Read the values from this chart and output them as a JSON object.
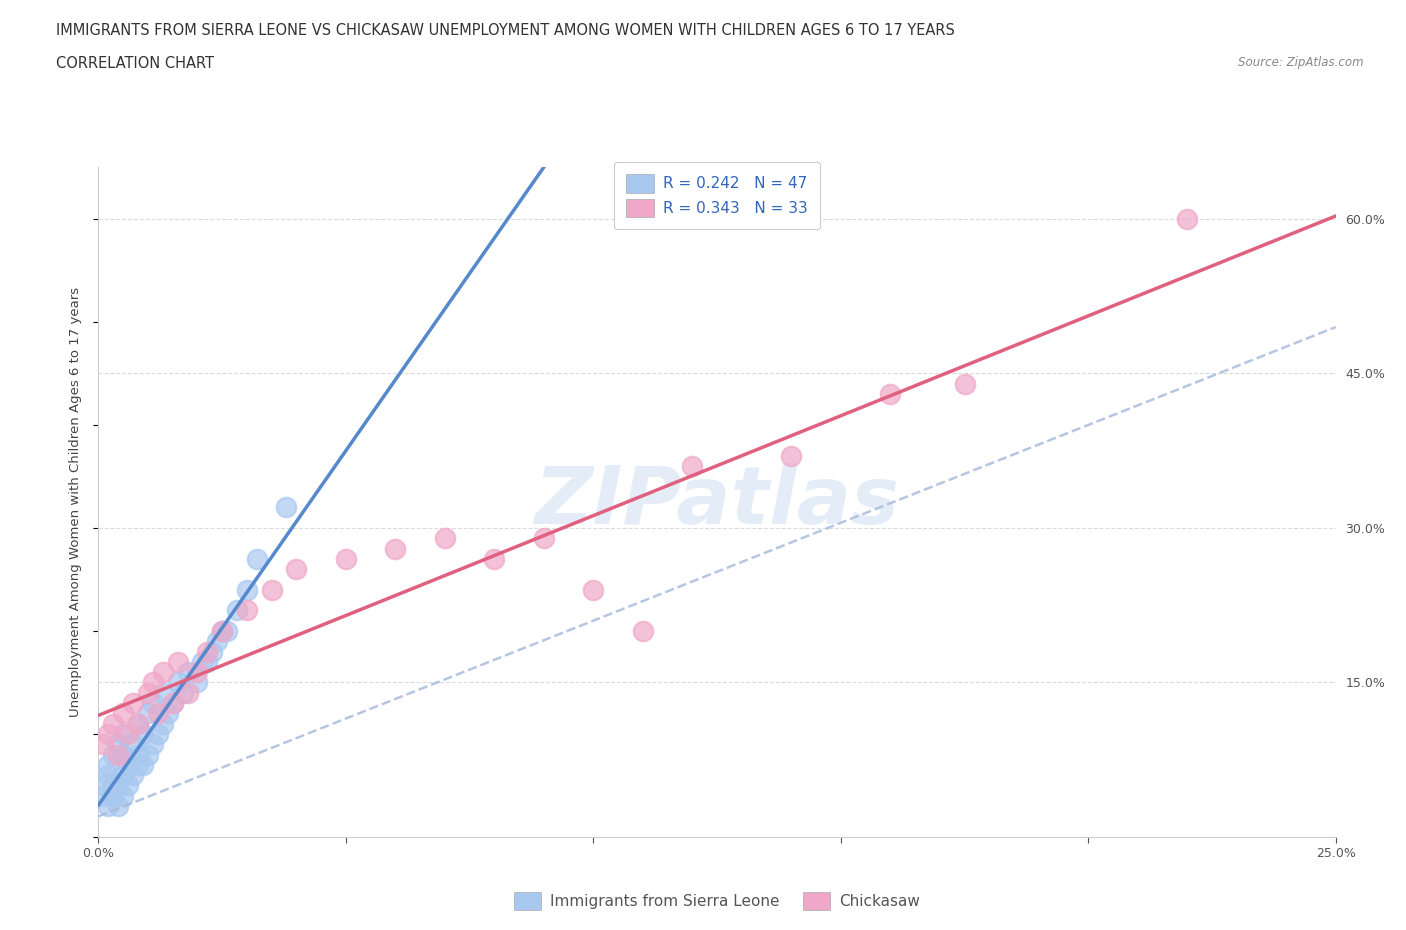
{
  "title": "IMMIGRANTS FROM SIERRA LEONE VS CHICKASAW UNEMPLOYMENT AMONG WOMEN WITH CHILDREN AGES 6 TO 17 YEARS",
  "subtitle": "CORRELATION CHART",
  "source": "Source: ZipAtlas.com",
  "ylabel": "Unemployment Among Women with Children Ages 6 to 17 years",
  "watermark": "ZIPatlas",
  "legend_label_1": "Immigrants from Sierra Leone",
  "legend_label_2": "Chickasaw",
  "r1": 0.242,
  "n1": 47,
  "r2": 0.343,
  "n2": 33,
  "color1": "#a8c8f0",
  "color2": "#f0a8c8",
  "line1_color": "#5588cc",
  "line1_dash_color": "#aabbdd",
  "line2_color": "#e06080",
  "xlim": [
    0.0,
    0.25
  ],
  "ylim": [
    0.0,
    0.65
  ],
  "xticks": [
    0.0,
    0.05,
    0.1,
    0.15,
    0.2,
    0.25
  ],
  "ytick_right_values": [
    0.0,
    0.15,
    0.3,
    0.45,
    0.6
  ],
  "ytick_right_labels": [
    "",
    "15.0%",
    "30.0%",
    "45.0%",
    "60.0%"
  ],
  "scatter1_x": [
    0.001,
    0.001,
    0.002,
    0.002,
    0.002,
    0.003,
    0.003,
    0.003,
    0.004,
    0.004,
    0.004,
    0.005,
    0.005,
    0.005,
    0.005,
    0.006,
    0.006,
    0.007,
    0.007,
    0.008,
    0.008,
    0.008,
    0.009,
    0.009,
    0.01,
    0.01,
    0.011,
    0.011,
    0.012,
    0.013,
    0.013,
    0.014,
    0.015,
    0.016,
    0.017,
    0.018,
    0.02,
    0.021,
    0.022,
    0.023,
    0.024,
    0.025,
    0.026,
    0.028,
    0.03,
    0.032,
    0.038
  ],
  "scatter1_y": [
    0.04,
    0.05,
    0.03,
    0.06,
    0.07,
    0.04,
    0.05,
    0.08,
    0.03,
    0.05,
    0.09,
    0.04,
    0.06,
    0.08,
    0.1,
    0.05,
    0.07,
    0.06,
    0.09,
    0.07,
    0.08,
    0.11,
    0.07,
    0.1,
    0.08,
    0.12,
    0.09,
    0.13,
    0.1,
    0.11,
    0.14,
    0.12,
    0.13,
    0.15,
    0.14,
    0.16,
    0.15,
    0.17,
    0.17,
    0.18,
    0.19,
    0.2,
    0.2,
    0.22,
    0.24,
    0.27,
    0.32
  ],
  "scatter2_x": [
    0.001,
    0.002,
    0.003,
    0.004,
    0.005,
    0.006,
    0.007,
    0.008,
    0.01,
    0.011,
    0.012,
    0.013,
    0.015,
    0.016,
    0.018,
    0.02,
    0.022,
    0.025,
    0.03,
    0.035,
    0.04,
    0.05,
    0.06,
    0.07,
    0.08,
    0.09,
    0.1,
    0.11,
    0.12,
    0.14,
    0.16,
    0.175,
    0.22
  ],
  "scatter2_y": [
    0.09,
    0.1,
    0.11,
    0.08,
    0.12,
    0.1,
    0.13,
    0.11,
    0.14,
    0.15,
    0.12,
    0.16,
    0.13,
    0.17,
    0.14,
    0.16,
    0.18,
    0.2,
    0.22,
    0.24,
    0.26,
    0.27,
    0.28,
    0.29,
    0.27,
    0.29,
    0.24,
    0.2,
    0.36,
    0.37,
    0.43,
    0.44,
    0.6
  ],
  "title_fontsize": 10.5,
  "subtitle_fontsize": 10.5,
  "axis_label_fontsize": 9.5,
  "tick_fontsize": 9,
  "legend_fontsize": 11,
  "background_color": "#ffffff",
  "grid_color": "#d8d8d8"
}
